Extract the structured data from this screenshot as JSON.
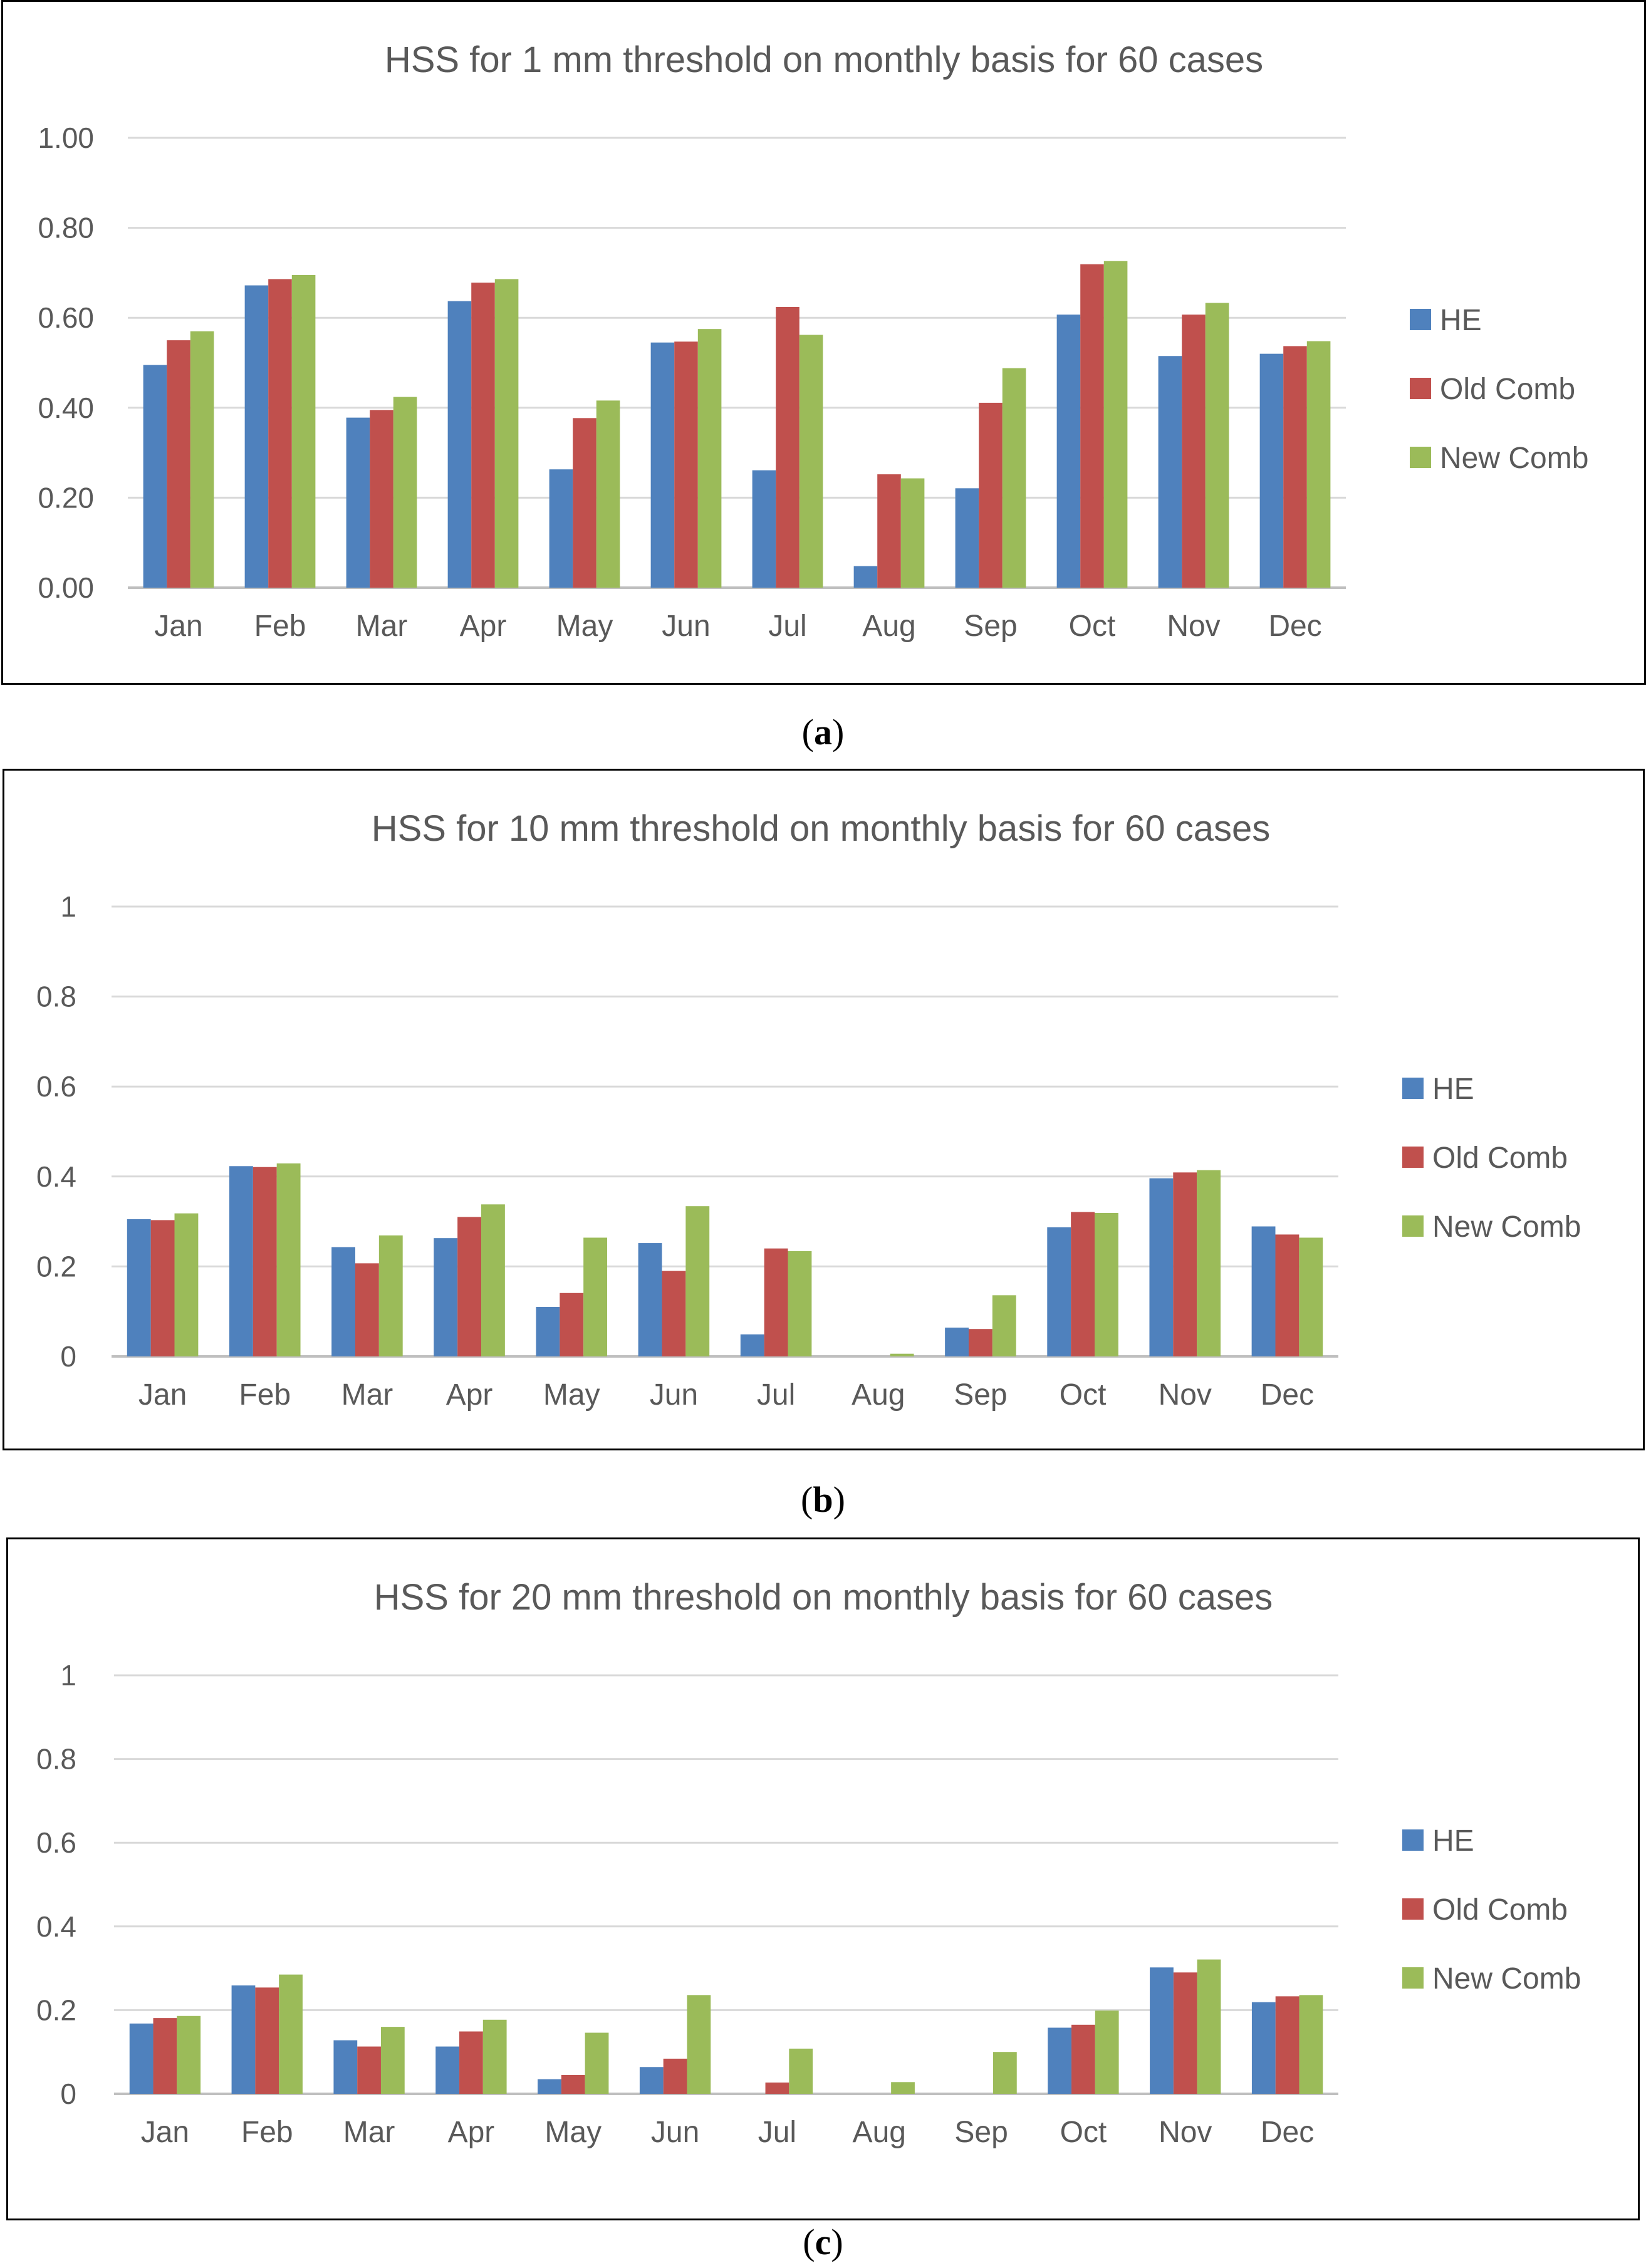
{
  "chart_data": [
    {
      "type": "bar",
      "title": "HSS for 1 mm threshold on monthly basis for 60 cases",
      "caption": "a",
      "categories": [
        "Jan",
        "Feb",
        "Mar",
        "Apr",
        "May",
        "Jun",
        "Jul",
        "Aug",
        "Sep",
        "Oct",
        "Nov",
        "Dec"
      ],
      "yticks": [
        "0.00",
        "0.20",
        "0.40",
        "0.60",
        "0.80",
        "1.00"
      ],
      "ylim": [
        0,
        1
      ],
      "grid": true,
      "legend": "right",
      "series": [
        {
          "name": "HE",
          "color": "#4f81bd",
          "values": [
            0.495,
            0.672,
            0.378,
            0.637,
            0.263,
            0.545,
            0.261,
            0.048,
            0.221,
            0.607,
            0.515,
            0.52
          ]
        },
        {
          "name": "Old Comb",
          "color": "#c0504d",
          "values": [
            0.55,
            0.686,
            0.395,
            0.678,
            0.377,
            0.547,
            0.624,
            0.252,
            0.411,
            0.719,
            0.607,
            0.537
          ]
        },
        {
          "name": "New Comb",
          "color": "#9bbb59",
          "values": [
            0.57,
            0.695,
            0.424,
            0.686,
            0.416,
            0.575,
            0.562,
            0.243,
            0.488,
            0.726,
            0.633,
            0.548
          ]
        }
      ]
    },
    {
      "type": "bar",
      "title": "HSS for 10 mm threshold on monthly basis for 60 cases",
      "caption": "b",
      "categories": [
        "Jan",
        "Feb",
        "Mar",
        "Apr",
        "May",
        "Jun",
        "Jul",
        "Aug",
        "Sep",
        "Oct",
        "Nov",
        "Dec"
      ],
      "yticks": [
        "0",
        "0.2",
        "0.4",
        "0.6",
        "0.8",
        "1"
      ],
      "ylim": [
        0,
        1
      ],
      "grid": true,
      "legend": "right",
      "series": [
        {
          "name": "HE",
          "color": "#4f81bd",
          "values": [
            0.305,
            0.423,
            0.243,
            0.263,
            0.11,
            0.252,
            0.049,
            0.0,
            0.064,
            0.287,
            0.396,
            0.289
          ]
        },
        {
          "name": "Old Comb",
          "color": "#c0504d",
          "values": [
            0.303,
            0.421,
            0.207,
            0.31,
            0.141,
            0.19,
            0.24,
            0.0,
            0.061,
            0.321,
            0.409,
            0.271
          ]
        },
        {
          "name": "New Comb",
          "color": "#9bbb59",
          "values": [
            0.318,
            0.429,
            0.269,
            0.338,
            0.264,
            0.334,
            0.234,
            0.006,
            0.136,
            0.319,
            0.414,
            0.264
          ]
        }
      ]
    },
    {
      "type": "bar",
      "title": "HSS for 20 mm threshold on monthly basis for 60 cases",
      "caption": "c",
      "categories": [
        "Jan",
        "Feb",
        "Mar",
        "Apr",
        "May",
        "Jun",
        "Jul",
        "Aug",
        "Sep",
        "Oct",
        "Nov",
        "Dec"
      ],
      "yticks": [
        "0",
        "0.2",
        "0.4",
        "0.6",
        "0.8",
        "1"
      ],
      "ylim": [
        0,
        1
      ],
      "grid": true,
      "legend": "right",
      "series": [
        {
          "name": "HE",
          "color": "#4f81bd",
          "values": [
            0.168,
            0.259,
            0.128,
            0.113,
            0.035,
            0.064,
            0.0,
            0.0,
            0.0,
            0.158,
            0.302,
            0.219
          ]
        },
        {
          "name": "Old Comb",
          "color": "#c0504d",
          "values": [
            0.181,
            0.254,
            0.113,
            0.149,
            0.045,
            0.084,
            0.027,
            0.0,
            0.0,
            0.165,
            0.29,
            0.233
          ]
        },
        {
          "name": "New Comb",
          "color": "#9bbb59",
          "values": [
            0.186,
            0.285,
            0.16,
            0.177,
            0.146,
            0.236,
            0.108,
            0.028,
            0.1,
            0.199,
            0.321,
            0.236
          ]
        }
      ]
    }
  ]
}
